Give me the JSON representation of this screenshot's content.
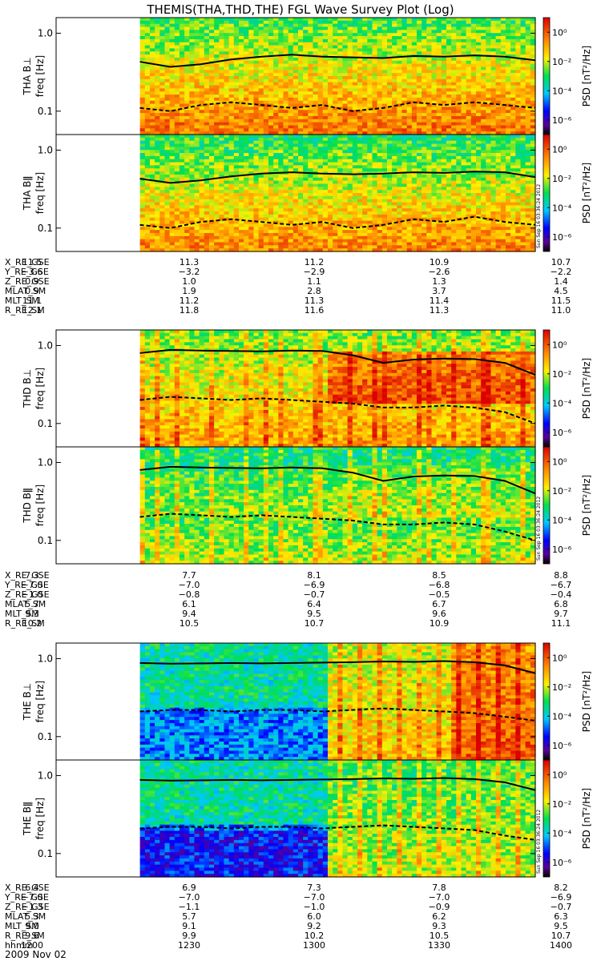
{
  "title": "THEMIS(THA,THD,THE) FGL Wave Survey Plot (Log)",
  "colors": {
    "line": "#000000",
    "background": "#ffffff"
  },
  "colorbar": {
    "label": "PSD [nT²/Hz]",
    "tick_labels": [
      "10⁰",
      "10⁻²",
      "10⁻⁴",
      "10⁻⁶"
    ],
    "log_min": -7,
    "log_max": 1,
    "tick_log_values": [
      0,
      -2,
      -4,
      -6
    ]
  },
  "yaxis": {
    "tick_labels": [
      "1.0",
      "0.1"
    ],
    "log_min": -1.3,
    "log_max": 0.2,
    "tick_values": [
      1.0,
      0.1
    ]
  },
  "stamp": "Sun Sep 16 03:36:24 2012",
  "footer_date": "2009 Nov 02",
  "chart_data": [
    {
      "type": "heatmap",
      "probe": "THA",
      "component": "perp",
      "ylabel": "THA B⊥",
      "ylabel_freq": "freq [Hz]",
      "data_start_fraction": 0.175,
      "fc_solid": [
        0.43,
        0.37,
        0.4,
        0.46,
        0.5,
        0.53,
        0.5,
        0.49,
        0.48,
        0.51,
        0.5,
        0.52,
        0.5,
        0.45
      ],
      "fc_dashed": [
        0.11,
        0.1,
        0.12,
        0.13,
        0.12,
        0.11,
        0.12,
        0.1,
        0.11,
        0.13,
        0.12,
        0.13,
        0.12,
        0.11
      ]
    },
    {
      "type": "heatmap",
      "probe": "THA",
      "component": "par",
      "ylabel": "THA Bǁ",
      "ylabel_freq": "freq [Hz]",
      "data_start_fraction": 0.175,
      "fc_solid": [
        0.43,
        0.38,
        0.41,
        0.46,
        0.5,
        0.52,
        0.5,
        0.49,
        0.5,
        0.52,
        0.51,
        0.53,
        0.52,
        0.45
      ],
      "fc_dashed": [
        0.11,
        0.1,
        0.12,
        0.13,
        0.12,
        0.11,
        0.12,
        0.1,
        0.11,
        0.13,
        0.12,
        0.14,
        0.12,
        0.11
      ]
    },
    {
      "type": "heatmap",
      "probe": "THD",
      "component": "perp",
      "ylabel": "THD B⊥",
      "ylabel_freq": "freq [Hz]",
      "data_start_fraction": 0.175,
      "fc_solid": [
        0.8,
        0.88,
        0.86,
        0.85,
        0.84,
        0.86,
        0.85,
        0.75,
        0.6,
        0.66,
        0.68,
        0.67,
        0.6,
        0.42
      ],
      "fc_dashed": [
        0.2,
        0.22,
        0.21,
        0.2,
        0.21,
        0.2,
        0.19,
        0.18,
        0.16,
        0.16,
        0.17,
        0.16,
        0.14,
        0.1
      ]
    },
    {
      "type": "heatmap",
      "probe": "THD",
      "component": "par",
      "ylabel": "THD Bǁ",
      "ylabel_freq": "freq [Hz]",
      "data_start_fraction": 0.175,
      "fc_solid": [
        0.8,
        0.88,
        0.86,
        0.85,
        0.84,
        0.86,
        0.84,
        0.74,
        0.58,
        0.66,
        0.68,
        0.67,
        0.58,
        0.4
      ],
      "fc_dashed": [
        0.2,
        0.22,
        0.21,
        0.2,
        0.21,
        0.2,
        0.19,
        0.18,
        0.16,
        0.16,
        0.17,
        0.16,
        0.13,
        0.1
      ]
    },
    {
      "type": "heatmap",
      "probe": "THE",
      "component": "perp",
      "ylabel": "THE B⊥",
      "ylabel_freq": "freq [Hz]",
      "data_start_fraction": 0.175,
      "fc_solid": [
        0.88,
        0.86,
        0.87,
        0.88,
        0.87,
        0.88,
        0.89,
        0.9,
        0.92,
        0.91,
        0.93,
        0.9,
        0.82,
        0.65
      ],
      "fc_dashed": [
        0.21,
        0.22,
        0.22,
        0.21,
        0.22,
        0.22,
        0.21,
        0.22,
        0.23,
        0.22,
        0.21,
        0.2,
        0.18,
        0.16
      ]
    },
    {
      "type": "heatmap",
      "probe": "THE",
      "component": "par",
      "ylabel": "THE Bǁ",
      "ylabel_freq": "freq [Hz]",
      "data_start_fraction": 0.175,
      "fc_solid": [
        0.88,
        0.86,
        0.87,
        0.88,
        0.87,
        0.88,
        0.89,
        0.9,
        0.92,
        0.91,
        0.93,
        0.9,
        0.82,
        0.65
      ],
      "fc_dashed": [
        0.21,
        0.22,
        0.22,
        0.21,
        0.22,
        0.22,
        0.21,
        0.22,
        0.23,
        0.22,
        0.21,
        0.2,
        0.17,
        0.15
      ]
    }
  ],
  "ephemeris": [
    {
      "rows": [
        {
          "label": "X_RE_GSE",
          "values": [
            "11.5",
            "11.3",
            "11.2",
            "10.9",
            "10.7"
          ]
        },
        {
          "label": "Y_RE_GSE",
          "values": [
            "−3.6",
            "−3.2",
            "−2.9",
            "−2.6",
            "−2.2"
          ]
        },
        {
          "label": "Z_RE_GSE",
          "values": [
            "0.9",
            "1.0",
            "1.1",
            "1.3",
            "1.4"
          ]
        },
        {
          "label": "MLAT_SM",
          "values": [
            "0.9",
            "1.9",
            "2.8",
            "3.7",
            "4.5"
          ]
        },
        {
          "label": "MLT_SM",
          "values": [
            "11.1",
            "11.2",
            "11.3",
            "11.4",
            "11.5"
          ]
        },
        {
          "label": "R_RE_SM",
          "values": [
            "12.1",
            "11.8",
            "11.6",
            "11.3",
            "11.0"
          ]
        }
      ]
    },
    {
      "rows": [
        {
          "label": "X_RE_GSE",
          "values": [
            "7.3",
            "7.7",
            "8.1",
            "8.5",
            "8.8"
          ]
        },
        {
          "label": "Y_RE_GSE",
          "values": [
            "−7.0",
            "−7.0",
            "−6.9",
            "−6.8",
            "−6.7"
          ]
        },
        {
          "label": "Z_RE_GSE",
          "values": [
            "−1.0",
            "−0.8",
            "−0.7",
            "−0.5",
            "−0.4"
          ]
        },
        {
          "label": "MLAT_SM",
          "values": [
            "5.7",
            "6.1",
            "6.4",
            "6.7",
            "6.8"
          ]
        },
        {
          "label": "MLT_SM",
          "values": [
            "9.3",
            "9.4",
            "9.5",
            "9.6",
            "9.7"
          ]
        },
        {
          "label": "R_RE_SM",
          "values": [
            "10.2",
            "10.5",
            "10.7",
            "10.9",
            "11.1"
          ]
        }
      ]
    },
    {
      "rows": [
        {
          "label": "X_RE_GSE",
          "values": [
            "6.4",
            "6.9",
            "7.3",
            "7.8",
            "8.2"
          ]
        },
        {
          "label": "Y_RE_GSE",
          "values": [
            "−7.0",
            "−7.0",
            "−7.0",
            "−7.0",
            "−6.9"
          ]
        },
        {
          "label": "Z_RE_GSE",
          "values": [
            "−1.3",
            "−1.1",
            "−1.0",
            "−0.9",
            "−0.7"
          ]
        },
        {
          "label": "MLAT_SM",
          "values": [
            "5.3",
            "5.7",
            "6.0",
            "6.2",
            "6.3"
          ]
        },
        {
          "label": "MLT_SM",
          "values": [
            "9.0",
            "9.1",
            "9.2",
            "9.3",
            "9.5"
          ]
        },
        {
          "label": "R_RE_SM",
          "values": [
            "9.6",
            "9.9",
            "10.2",
            "10.5",
            "10.7"
          ]
        },
        {
          "label": "hhmm",
          "values": [
            "1200",
            "1230",
            "1300",
            "1330",
            "1400"
          ]
        }
      ]
    }
  ]
}
